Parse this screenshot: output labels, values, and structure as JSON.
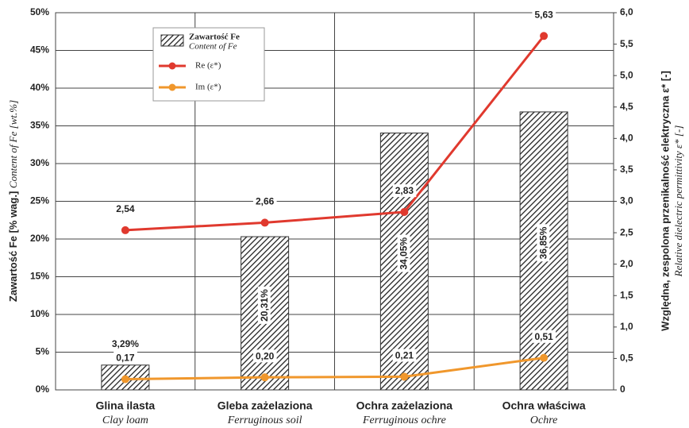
{
  "chart_data": {
    "type": "bar",
    "ylabel": "Zawartość Fe [% wag.]",
    "ylabel_en": "Content of Fe [wt.%]",
    "y2label": "Względna, zespolona przenikalność elektryczna ε* [-]",
    "y2label_en": "Relative dielectric permittivity ε* [-]",
    "categories": [
      "Glina ilasta",
      "Gleba zażelaziona",
      "Ochra zażelaziona",
      "Ochra właściwa"
    ],
    "categories_en": [
      "Clay loam",
      "Ferruginous soil",
      "Ferruginous ochre",
      "Ochre"
    ],
    "series": [
      {
        "name": "Zawartość Fe",
        "name_en": "Content of Fe",
        "type": "bar",
        "color": "#333333",
        "values": [
          3.29,
          20.31,
          34.05,
          36.85
        ],
        "value_labels": [
          "3,29%",
          "20,31%",
          "34,05%",
          "36,85%"
        ]
      },
      {
        "name": "Re (ε*)",
        "type": "line",
        "axis": "y2",
        "color": "#e0392e",
        "values": [
          2.54,
          2.66,
          2.83,
          5.63
        ],
        "value_labels": [
          "2,54",
          "2,66",
          "2,83",
          "5,63"
        ]
      },
      {
        "name": "Im (ε*)",
        "type": "line",
        "axis": "y2",
        "color": "#f0972c",
        "values": [
          0.17,
          0.2,
          0.21,
          0.51
        ],
        "value_labels": [
          "0,17",
          "0,20",
          "0,21",
          "0,51"
        ]
      }
    ],
    "ylim": [
      0,
      50
    ],
    "yticks": [
      {
        "value": 0,
        "label": "0%"
      },
      {
        "value": 5,
        "label": "5%"
      },
      {
        "value": 10,
        "label": "10%"
      },
      {
        "value": 15,
        "label": "15%"
      },
      {
        "value": 20,
        "label": "20%"
      },
      {
        "value": 25,
        "label": "25%"
      },
      {
        "value": 30,
        "label": "30%"
      },
      {
        "value": 35,
        "label": "35%"
      },
      {
        "value": 40,
        "label": "40%"
      },
      {
        "value": 45,
        "label": "45%"
      },
      {
        "value": 50,
        "label": "50%"
      }
    ],
    "y2lim": [
      0,
      6
    ],
    "y2ticks": [
      0,
      {
        "value": 0.5,
        "label": "0,5"
      },
      {
        "value": 1,
        "label": "1,0"
      },
      {
        "value": 1.5,
        "label": "1,5"
      },
      {
        "value": 2,
        "label": "2,0"
      },
      {
        "value": 2.5,
        "label": "2,5"
      },
      {
        "value": 3,
        "label": "3,0"
      },
      {
        "value": 3.5,
        "label": "3,5"
      },
      {
        "value": 4,
        "label": "4,0"
      },
      {
        "value": 4.5,
        "label": "4,5"
      },
      {
        "value": 5,
        "label": "5,0"
      },
      {
        "value": 5.5,
        "label": "5,5"
      },
      {
        "value": 6,
        "label": "6,0"
      }
    ],
    "grid": true
  }
}
